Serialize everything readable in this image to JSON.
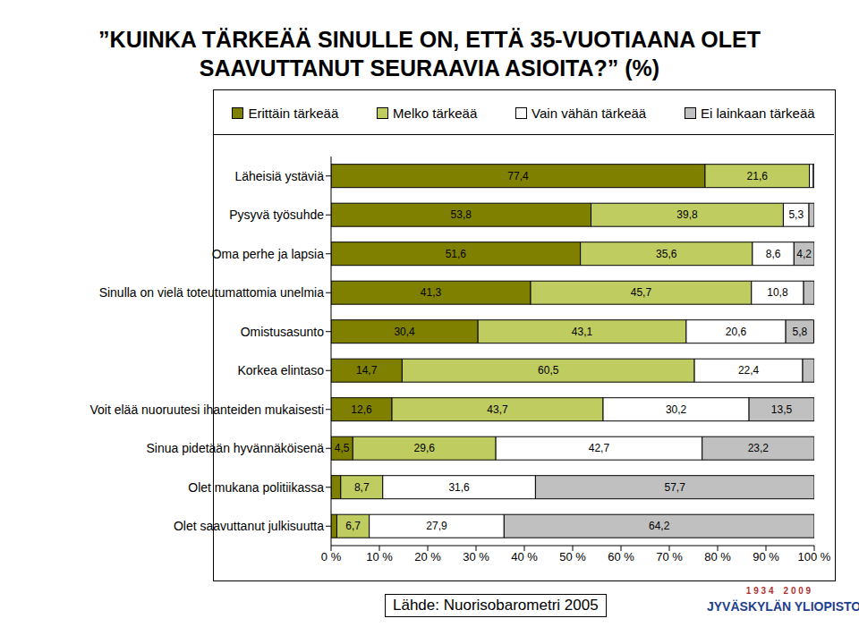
{
  "chart_data": {
    "type": "bar",
    "orientation": "horizontal",
    "stacked": true,
    "data_labels": true,
    "grid": false,
    "legend": "top",
    "title": "”KUINKA TÄRKEÄÄ SINULLE ON, ETTÄ 35-VUOTIAANA OLET SAAVUTTANUT SEURAAVIA ASIOITA?” (%)",
    "annotations": [
      "Lähde: Nuorisobarometri 2005",
      "1 9 3 4    2 0 0 9",
      "JYVÄSKYLÄN YLIOPISTO"
    ],
    "categories": [
      "Läheisiä ystäviä",
      "Pysyvä työsuhde",
      "Oma perhe ja lapsia",
      "Sinulla on vielä toteutumattomia unelmia",
      "Omistusasunto",
      "Korkea elintaso",
      "Voit elää nuoruutesi ihanteiden mukaisesti",
      "Sinua pidetään hyvännäköisenä",
      "Olet mukana politiikassa",
      "Olet saavuttanut julkisuutta"
    ],
    "series": [
      {
        "name": "Erittäin tärkeää",
        "color": "#808000",
        "values": [
          77.4,
          53.8,
          51.6,
          41.3,
          30.4,
          14.7,
          12.6,
          4.5,
          2.0,
          1.2
        ],
        "value_labels": [
          "77,4",
          "53,8",
          "51,6",
          "41,3",
          "30,4",
          "14,7",
          "12,6",
          "4,5",
          null,
          null
        ]
      },
      {
        "name": "Melko tärkeää",
        "color": "#bfcc5f",
        "values": [
          21.6,
          39.8,
          35.6,
          45.7,
          43.1,
          60.5,
          43.7,
          29.6,
          8.7,
          6.7
        ],
        "value_labels": [
          "21,6",
          "39,8",
          "35,6",
          "45,7",
          "43,1",
          "60,5",
          "43,7",
          "29,6",
          "8,7",
          "6,7"
        ]
      },
      {
        "name": "Vain vähän tärkeää",
        "color": "#ffffff",
        "values": [
          0.8,
          5.3,
          8.6,
          10.8,
          20.6,
          22.4,
          30.2,
          42.7,
          31.6,
          27.9
        ],
        "value_labels": [
          null,
          "5,3",
          "8,6",
          "10,8",
          "20,6",
          "22,4",
          "30,2",
          "42,7",
          "31,6",
          "27,9"
        ]
      },
      {
        "name": "Ei lainkaan tärkeää",
        "color": "#c0c0c0",
        "values": [
          0.2,
          1.1,
          4.2,
          2.2,
          5.8,
          2.4,
          13.5,
          23.2,
          57.7,
          64.2
        ],
        "value_labels": [
          null,
          null,
          "4,2",
          null,
          "5,8",
          null,
          "13,5",
          "23,2",
          "57,7",
          "64,2"
        ]
      }
    ],
    "xlim": [
      0,
      100
    ],
    "xticks": [
      {
        "value": 0,
        "label": "0 %"
      },
      {
        "value": 10,
        "label": "10 %"
      },
      {
        "value": 20,
        "label": "20 %"
      },
      {
        "value": 30,
        "label": "30 %"
      },
      {
        "value": 40,
        "label": "40 %"
      },
      {
        "value": 50,
        "label": "50 %"
      },
      {
        "value": 60,
        "label": "60 %"
      },
      {
        "value": 70,
        "label": "70 %"
      },
      {
        "value": 80,
        "label": "80 %"
      },
      {
        "value": 90,
        "label": "90 %"
      },
      {
        "value": 100,
        "label": "100 %"
      }
    ]
  }
}
